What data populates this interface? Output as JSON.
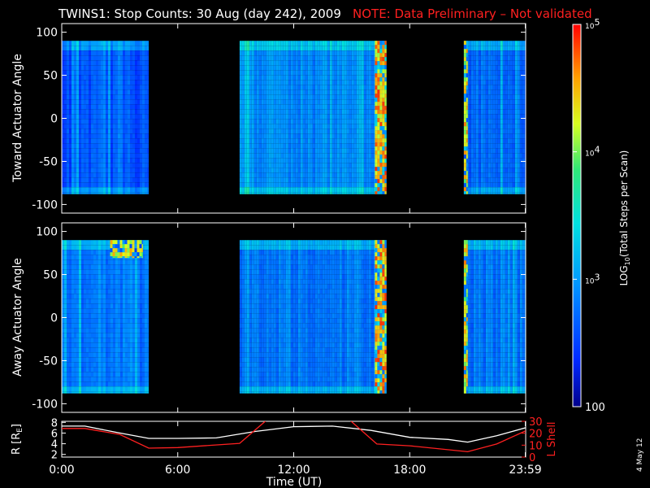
{
  "title": {
    "main": "TWINS1: Stop Counts: 30 Aug (day 242), 2009",
    "note": "NOTE: Data Preliminary – Not validated"
  },
  "colors": {
    "background": "#000000",
    "note": "#ff2020",
    "axis": "#ffffff",
    "r_line": "#ffffff",
    "l_line": "#ff2020"
  },
  "stamp": "4 May 12",
  "colorbar": {
    "label": "LOG10(Total Steps per Scan)",
    "label_parts": [
      "LOG",
      "10",
      "(Total Steps per Scan)"
    ],
    "scale": "log",
    "min": 100,
    "max": 100000,
    "tick_labels": [
      "100",
      "10^3",
      "10^4",
      "10^5"
    ],
    "tick_values": [
      100,
      1000,
      10000,
      100000
    ]
  },
  "chart_data": [
    {
      "type": "heatmap",
      "name": "toward",
      "ylabel": "Toward Actuator Angle",
      "xlabel": "",
      "xlim": [
        0,
        24
      ],
      "ylim": [
        -110,
        110
      ],
      "y_ticks": [
        100,
        50,
        0,
        -50,
        -100
      ],
      "data_yrange": [
        -88,
        90
      ],
      "data_blocks": [
        {
          "start": 0.0,
          "end": 4.5,
          "level": 2.6
        },
        {
          "start": 9.2,
          "end": 16.8,
          "level": 2.9
        },
        {
          "start": 20.8,
          "end": 23.98,
          "level": 2.7
        }
      ],
      "hot_blocks": [
        {
          "start": 16.2,
          "end": 16.8,
          "level": 4.5
        },
        {
          "start": 20.8,
          "end": 21.0,
          "level": 4.3
        }
      ]
    },
    {
      "type": "heatmap",
      "name": "away",
      "ylabel": "Away Actuator Angle",
      "xlabel": "",
      "xlim": [
        0,
        24
      ],
      "ylim": [
        -110,
        110
      ],
      "y_ticks": [
        100,
        50,
        0,
        -50,
        -100
      ],
      "data_yrange": [
        -88,
        90
      ],
      "data_blocks": [
        {
          "start": 0.0,
          "end": 4.5,
          "level": 2.8
        },
        {
          "start": 9.2,
          "end": 16.8,
          "level": 2.8
        },
        {
          "start": 20.8,
          "end": 23.98,
          "level": 2.8
        }
      ],
      "hot_blocks": [
        {
          "start": 16.2,
          "end": 16.8,
          "level": 4.5
        },
        {
          "start": 20.8,
          "end": 21.0,
          "level": 4.3
        },
        {
          "start": 2.5,
          "end": 4.2,
          "level": 4.2
        }
      ]
    },
    {
      "type": "line",
      "name": "orbit",
      "xlabel": "Time (UT)",
      "ylabel": "R [RE]",
      "ylabel_parts": [
        "R [R",
        "E",
        "]"
      ],
      "y2label": "L Shell",
      "xlim": [
        0,
        24
      ],
      "ylim": [
        1.5,
        8.2
      ],
      "y2lim": [
        0,
        30
      ],
      "x_tick_labels": [
        "0:00",
        "6:00",
        "12:00",
        "18:00",
        "23:59"
      ],
      "x_tick_values": [
        0,
        6,
        12,
        18,
        23.98
      ],
      "y_ticks": [
        8,
        6,
        4,
        2
      ],
      "y2_ticks": [
        30,
        20,
        10,
        0
      ],
      "series": [
        {
          "name": "R",
          "axis": "left",
          "x": [
            0,
            1.2,
            3,
            4.5,
            6,
            8,
            10,
            12,
            14,
            16,
            18,
            20,
            21,
            22.5,
            24
          ],
          "values": [
            7.3,
            7.3,
            6.0,
            5.0,
            5.0,
            5.1,
            6.3,
            7.2,
            7.3,
            6.5,
            5.2,
            4.8,
            4.3,
            5.5,
            7.0
          ]
        },
        {
          "name": "L Shell",
          "axis": "right",
          "x": [
            0,
            1.2,
            3,
            4.5,
            6,
            9.2,
            10.6,
            12,
            14,
            14.9,
            16.3,
            18,
            21,
            22.5,
            24
          ],
          "values": [
            24,
            24,
            19,
            7.5,
            8,
            11.5,
            31,
            31,
            31,
            31,
            11,
            9.5,
            4.5,
            11,
            22
          ]
        }
      ]
    }
  ]
}
